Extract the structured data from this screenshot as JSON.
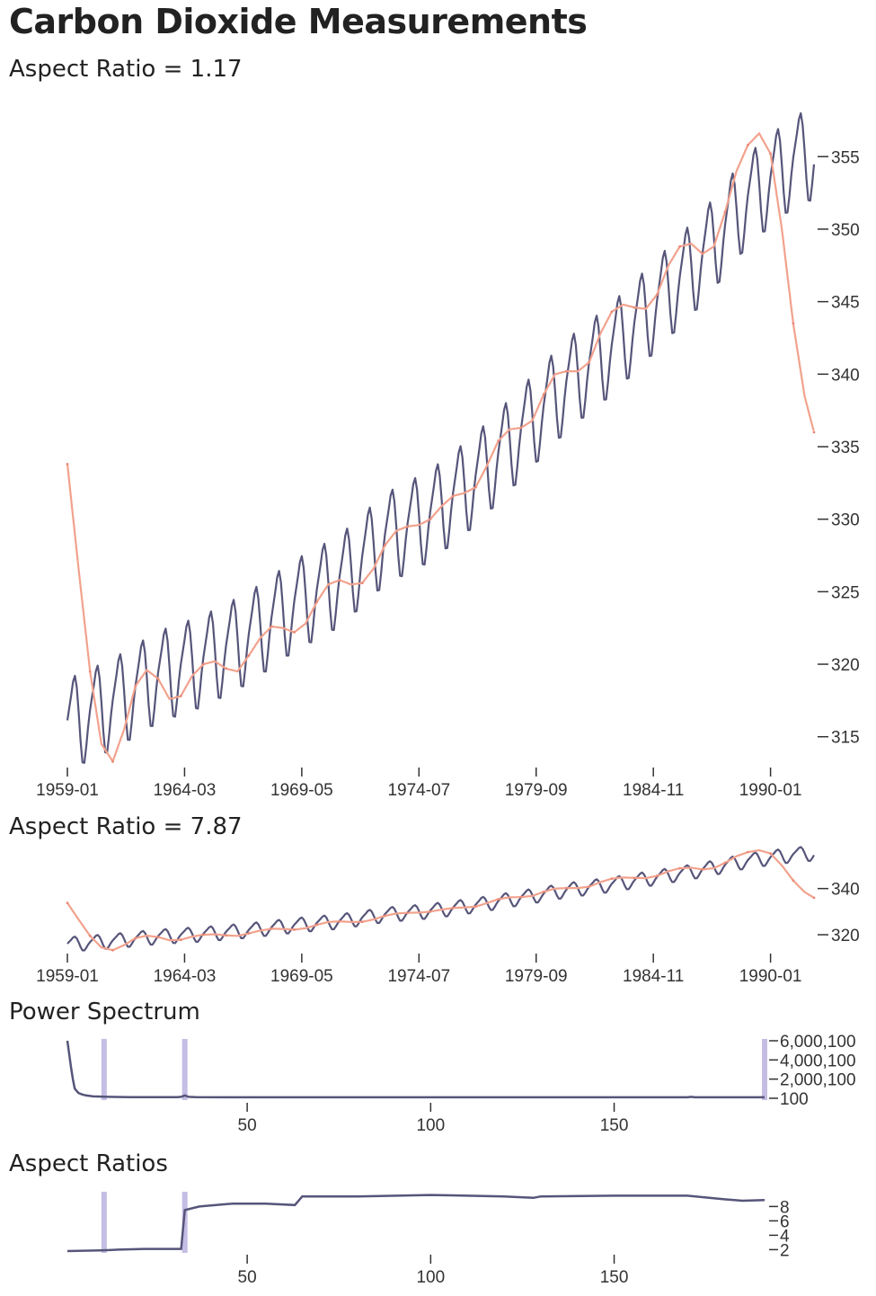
{
  "header": {
    "title": "Carbon Dioxide Measurements",
    "sub1": "Aspect Ratio = 1.17",
    "sub2": "Aspect Ratio = 7.87",
    "sub3": "Power Spectrum",
    "sub4": "Aspect Ratios"
  },
  "colors": {
    "co2": "#56557a",
    "trend": "#f2a28d",
    "highlight": "#c5bde4"
  },
  "chart_data": [
    {
      "type": "line",
      "title": "Aspect Ratio = 1.17",
      "x_ticks": [
        "1959-01",
        "1964-03",
        "1969-05",
        "1974-07",
        "1979-09",
        "1984-11",
        "1990-01"
      ],
      "y_ticks": [
        315,
        320,
        325,
        330,
        335,
        340,
        345,
        350,
        355
      ],
      "ylim": [
        313,
        357
      ],
      "xlim": [
        "1959-01",
        "1991-12"
      ],
      "series": [
        {
          "role": "monthly",
          "color": "#56557a",
          "trend_points": [
            [
              "1959-01",
              315.6
            ],
            [
              "1961-01",
              317.0
            ],
            [
              "1963-01",
              318.9
            ],
            [
              "1965-01",
              320.0
            ],
            [
              "1967-01",
              321.6
            ],
            [
              "1969-01",
              323.8
            ],
            [
              "1971-01",
              325.5
            ],
            [
              "1973-01",
              328.4
            ],
            [
              "1975-01",
              330.0
            ],
            [
              "1977-01",
              332.5
            ],
            [
              "1979-01",
              335.7
            ],
            [
              "1981-01",
              339.0
            ],
            [
              "1983-01",
              341.5
            ],
            [
              "1985-01",
              344.6
            ],
            [
              "1987-01",
              347.8
            ],
            [
              "1989-01",
              351.8
            ],
            [
              "1991-01",
              354.4
            ],
            [
              "1991-12",
              355.0
            ]
          ],
          "seasonal_amplitude": 6.3
        },
        {
          "role": "smoothed",
          "color": "#f2a28d",
          "points": [
            [
              "1959-01",
              333.8
            ],
            [
              "1959-07",
              326.5
            ],
            [
              "1960-01",
              319.5
            ],
            [
              "1960-07",
              314.5
            ],
            [
              "1961-01",
              313.3
            ],
            [
              "1961-07",
              315.5
            ],
            [
              "1962-01",
              318.5
            ],
            [
              "1962-07",
              319.6
            ],
            [
              "1963-01",
              319.0
            ],
            [
              "1963-07",
              317.6
            ],
            [
              "1964-01",
              317.8
            ],
            [
              "1964-07",
              319.2
            ],
            [
              "1965-01",
              320.0
            ],
            [
              "1965-07",
              320.2
            ],
            [
              "1966-01",
              319.7
            ],
            [
              "1966-07",
              319.5
            ],
            [
              "1967-01",
              320.6
            ],
            [
              "1967-07",
              321.8
            ],
            [
              "1968-01",
              322.6
            ],
            [
              "1968-07",
              322.5
            ],
            [
              "1969-01",
              322.2
            ],
            [
              "1969-07",
              322.8
            ],
            [
              "1970-01",
              324.3
            ],
            [
              "1970-07",
              325.5
            ],
            [
              "1971-01",
              325.8
            ],
            [
              "1971-07",
              325.5
            ],
            [
              "1972-01",
              325.6
            ],
            [
              "1972-07",
              326.6
            ],
            [
              "1973-01",
              328.2
            ],
            [
              "1973-07",
              329.2
            ],
            [
              "1974-01",
              329.5
            ],
            [
              "1974-07",
              329.6
            ],
            [
              "1975-01",
              330.0
            ],
            [
              "1975-07",
              330.9
            ],
            [
              "1976-01",
              331.6
            ],
            [
              "1976-07",
              331.8
            ],
            [
              "1977-01",
              332.2
            ],
            [
              "1977-07",
              333.7
            ],
            [
              "1978-01",
              335.4
            ],
            [
              "1978-07",
              336.2
            ],
            [
              "1979-01",
              336.3
            ],
            [
              "1979-07",
              336.8
            ],
            [
              "1980-01",
              338.6
            ],
            [
              "1980-07",
              340.0
            ],
            [
              "1981-01",
              340.2
            ],
            [
              "1981-07",
              340.2
            ],
            [
              "1982-01",
              340.8
            ],
            [
              "1982-07",
              342.8
            ],
            [
              "1983-01",
              344.3
            ],
            [
              "1983-07",
              344.8
            ],
            [
              "1984-01",
              344.6
            ],
            [
              "1984-07",
              344.5
            ],
            [
              "1985-01",
              345.5
            ],
            [
              "1985-07",
              347.5
            ],
            [
              "1986-01",
              348.8
            ],
            [
              "1986-07",
              349.0
            ],
            [
              "1987-01",
              348.3
            ],
            [
              "1987-07",
              348.8
            ],
            [
              "1988-01",
              351.2
            ],
            [
              "1988-07",
              354.0
            ],
            [
              "1989-01",
              355.8
            ],
            [
              "1989-07",
              356.6
            ],
            [
              "1990-01",
              355.2
            ],
            [
              "1990-07",
              350.0
            ],
            [
              "1991-01",
              343.5
            ],
            [
              "1991-07",
              338.5
            ],
            [
              "1991-12",
              336.0
            ]
          ]
        }
      ]
    },
    {
      "type": "line",
      "title": "Aspect Ratio = 7.87",
      "x_ticks": [
        "1959-01",
        "1964-03",
        "1969-05",
        "1974-07",
        "1979-09",
        "1984-11",
        "1990-01"
      ],
      "y_ticks": [
        320,
        340
      ],
      "ylim": [
        313,
        357
      ],
      "note": "same data as the first chart, flattened"
    },
    {
      "type": "area",
      "title": "Power Spectrum",
      "x_ticks": [
        50,
        100,
        150
      ],
      "y_ticks": [
        "100",
        "2,000,100",
        "4,000,100",
        "6,000,100"
      ],
      "xlim": [
        1,
        191
      ],
      "ylim": [
        100,
        6000100
      ],
      "points": [
        [
          1,
          6000100
        ],
        [
          2,
          3200000
        ],
        [
          2.5,
          2000000
        ],
        [
          3,
          1000000
        ],
        [
          4,
          550000
        ],
        [
          5,
          400000
        ],
        [
          6,
          300000
        ],
        [
          8,
          200000
        ],
        [
          12,
          150000
        ],
        [
          18,
          120000
        ],
        [
          25,
          110000
        ],
        [
          31,
          110000
        ],
        [
          32,
          150000
        ],
        [
          33,
          300000
        ],
        [
          34,
          150000
        ],
        [
          36,
          110000
        ],
        [
          60,
          100000
        ],
        [
          120,
          100000
        ],
        [
          170,
          100000
        ],
        [
          171,
          150000
        ],
        [
          172,
          100000
        ],
        [
          191,
          100000
        ]
      ],
      "highlights": [
        11,
        33,
        191
      ]
    },
    {
      "type": "line",
      "title": "Aspect Ratios",
      "x_ticks": [
        50,
        100,
        150
      ],
      "y_ticks": [
        2,
        4,
        6,
        8
      ],
      "xlim": [
        1,
        191
      ],
      "ylim": [
        1.8,
        9.8
      ],
      "points": [
        [
          1,
          1.8
        ],
        [
          10,
          1.9
        ],
        [
          15,
          2.0
        ],
        [
          22,
          2.1
        ],
        [
          31,
          2.1
        ],
        [
          32,
          2.1
        ],
        [
          33,
          7.5
        ],
        [
          37,
          8.0
        ],
        [
          46,
          8.4
        ],
        [
          55,
          8.4
        ],
        [
          63,
          8.2
        ],
        [
          65,
          9.4
        ],
        [
          80,
          9.4
        ],
        [
          100,
          9.6
        ],
        [
          120,
          9.4
        ],
        [
          128,
          9.2
        ],
        [
          130,
          9.4
        ],
        [
          150,
          9.5
        ],
        [
          170,
          9.5
        ],
        [
          180,
          9.0
        ],
        [
          185,
          8.8
        ],
        [
          191,
          8.9
        ]
      ],
      "highlights": [
        11,
        33
      ]
    }
  ]
}
